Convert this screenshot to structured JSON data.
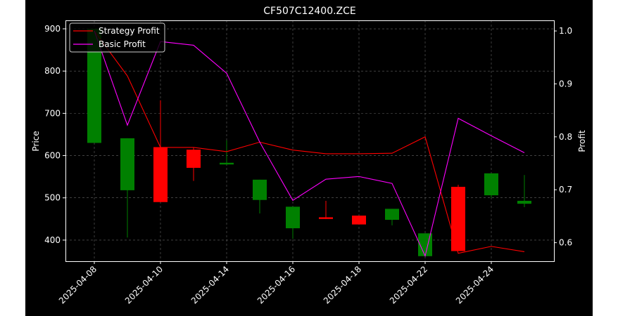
{
  "chart_data": {
    "type": "candlestick",
    "title": "CF507C12400.ZCE",
    "ylabel_left": "Price",
    "ylabel_right": "Profit",
    "ylim_left": [
      350,
      920
    ],
    "ylim_right": [
      0.565,
      1.02
    ],
    "y_ticks_left": [
      400,
      500,
      600,
      700,
      800,
      900
    ],
    "y_ticks_right": [
      0.6,
      0.7,
      0.8,
      0.9,
      1.0
    ],
    "y_tick_labels_left": [
      "400",
      "500",
      "600",
      "700",
      "800",
      "900"
    ],
    "y_tick_labels_right": [
      "0.6",
      "0.7",
      "0.8",
      "0.9",
      "1.0"
    ],
    "x_tick_labels": [
      "2025-04-08",
      "2025-04-10",
      "2025-04-14",
      "2025-04-16",
      "2025-04-18",
      "2025-04-22",
      "2025-04-24"
    ],
    "x_tick_positions": [
      0,
      2,
      4,
      6,
      8,
      10,
      12
    ],
    "grid": true,
    "legend_position": "top-left",
    "candles": [
      {
        "index": 0,
        "open": 630,
        "close": 900,
        "high": 900,
        "low": 630
      },
      {
        "index": 1,
        "open": 518,
        "close": 641,
        "high": 641,
        "low": 406
      },
      {
        "index": 2,
        "open": 620,
        "close": 490,
        "high": 731,
        "low": 490
      },
      {
        "index": 3,
        "open": 614,
        "close": 571,
        "high": 620,
        "low": 540
      },
      {
        "index": 4,
        "open": 579,
        "close": 583,
        "high": 636,
        "low": 578
      },
      {
        "index": 5,
        "open": 495,
        "close": 543,
        "high": 543,
        "low": 463
      },
      {
        "index": 6,
        "open": 428,
        "close": 479,
        "high": 479,
        "low": 403
      },
      {
        "index": 7,
        "open": 454,
        "close": 450,
        "high": 493,
        "low": 450
      },
      {
        "index": 8,
        "open": 458,
        "close": 437,
        "high": 458,
        "low": 437
      },
      {
        "index": 9,
        "open": 448,
        "close": 474,
        "high": 474,
        "low": 435
      },
      {
        "index": 10,
        "open": 362,
        "close": 416,
        "high": 416,
        "low": 362
      },
      {
        "index": 11,
        "open": 526,
        "close": 374,
        "high": 531,
        "low": 374
      },
      {
        "index": 12,
        "open": 506,
        "close": 558,
        "high": 558,
        "low": 500
      },
      {
        "index": 13,
        "open": 486,
        "close": 493,
        "high": 554,
        "low": 478
      }
    ],
    "series": [
      {
        "name": "Strategy Profit",
        "axis": "right",
        "color": "#ff0000",
        "values": [
          1.0,
          0.915,
          0.78,
          0.78,
          0.772,
          0.79,
          0.775,
          0.768,
          0.768,
          0.769,
          0.8,
          0.58,
          0.593,
          0.583
        ]
      },
      {
        "name": "Basic Profit",
        "axis": "right",
        "color": "#ff00ff",
        "values": [
          1.0,
          0.822,
          0.98,
          0.973,
          0.92,
          0.79,
          0.68,
          0.72,
          0.725,
          0.712,
          0.575,
          0.835,
          0.802,
          0.77
        ]
      }
    ],
    "colors": {
      "up": "#008000",
      "down": "#ff0000",
      "background": "#000000"
    }
  }
}
